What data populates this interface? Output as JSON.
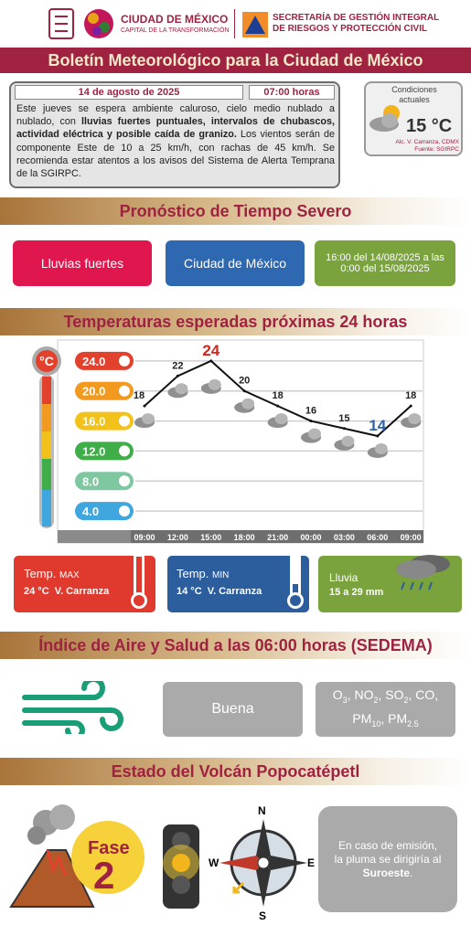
{
  "header": {
    "city": "CIUDAD DE MÉXICO",
    "city_tagline": "CAPITAL DE LA TRANSFORMACIÓN",
    "agency": [
      "SECRETARÍA DE GESTIÓN INTEGRAL",
      "DE RIESGOS Y PROTECCIÓN CIVIL"
    ]
  },
  "title": "Boletín Meteorológico para la Ciudad de México",
  "bulletin": {
    "date": "14 de agosto de 2025",
    "time": "07:00 horas",
    "text": [
      {
        "bold": false,
        "text": "Este jueves se espera ambiente caluroso, cielo medio nublado a nublado, con "
      },
      {
        "bold": true,
        "text": "lluvias fuertes puntuales, intervalos de chubascos, actividad eléctrica y posible caída de granizo."
      },
      {
        "bold": false,
        "text": " Los vientos serán de componente Este de 10 a 25 km/h, con rachas de 45 km/h. Se recomienda estar atentos a  los avisos del Sistema de Alerta Temprana de la SGIRPC."
      }
    ]
  },
  "current": {
    "label": "Condiciones actuales",
    "temperature": "15 °C",
    "location": "Alc. V. Carranza, CDMX",
    "source": "Fuente: SGIRPC"
  },
  "severe": {
    "title": "Pronóstico de Tiempo Severo",
    "phenomenon": "Lluvias fuertes",
    "area": "Ciudad de México",
    "period": "16:00 del 14/08/2025 a las 0:00 del 15/08/2025"
  },
  "temperature": {
    "title": "Temperaturas esperadas próximas 24 horas",
    "unit": "°C",
    "chart": {
      "type": "line",
      "categories": [
        "09:00",
        "12:00",
        "15:00",
        "18:00",
        "21:00",
        "00:00",
        "03:00",
        "06:00",
        "09:00"
      ],
      "values": [
        18,
        22,
        24,
        20,
        18,
        16,
        15,
        14,
        18
      ],
      "line_color": "#111111",
      "max_color": "#d0261d",
      "min_color": "#2a63a8",
      "ylim": [
        0,
        28
      ],
      "yticks": [
        {
          "value": 24,
          "label": "24.0"
        },
        {
          "value": 20,
          "label": "20.0"
        },
        {
          "value": 16,
          "label": "16.0"
        },
        {
          "value": 12,
          "label": "12.0"
        },
        {
          "value": 8,
          "label": "8.0"
        },
        {
          "value": 4,
          "label": "4.0"
        }
      ],
      "tick_colors": [
        "#e2412d",
        "#f29a1f",
        "#f2c21b",
        "#3fae49",
        "#7fc7a1",
        "#3fa6de"
      ],
      "grid": true
    }
  },
  "summary": [
    {
      "label": "Temp.",
      "qualifier": "MAX",
      "detail": "24 °C  V. Carranza"
    },
    {
      "label": "Temp.",
      "qualifier": "MIN",
      "detail": "14 °C  V. Carranza"
    },
    {
      "label": "Lluvia",
      "detail": "15 a 29 mm"
    }
  ],
  "air": {
    "title": "Índice de Aire y Salud a las 06:00 horas (SEDEMA)",
    "quality": "Buena",
    "pollutants": [
      {
        "text": "O",
        "sub": "3"
      },
      {
        "text": ", NO",
        "sub": "2"
      },
      {
        "text": ", SO",
        "sub": "2"
      },
      {
        "text": ", CO, PM",
        "sub": "10"
      },
      {
        "text": ", PM",
        "sub": "2.5"
      }
    ]
  },
  "volcano": {
    "title": "Estado del Volcán Popocatépetl",
    "phase_label": "Fase",
    "phase": "2",
    "compass": {
      "n": "N",
      "e": "E",
      "s": "S",
      "w": "W"
    },
    "note": [
      {
        "bold": false,
        "text": "En caso de emisión, la pluma se dirigiría al "
      },
      {
        "bold": true,
        "text": "Suroeste"
      },
      {
        "bold": false,
        "text": "."
      }
    ]
  }
}
